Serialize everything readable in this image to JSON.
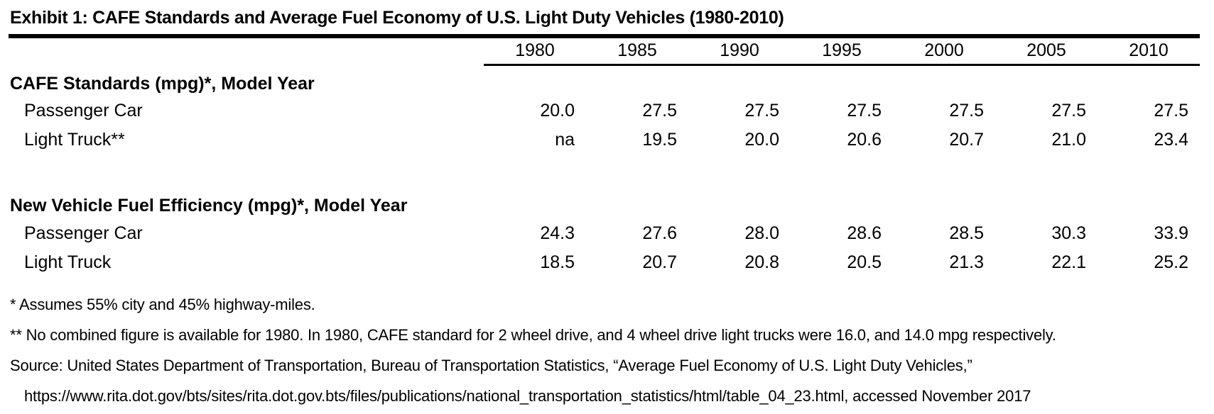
{
  "title": "Exhibit 1: CAFE Standards and Average Fuel Economy of U.S. Light Duty Vehicles (1980-2010)",
  "table": {
    "year_columns": [
      "1980",
      "1985",
      "1990",
      "1995",
      "2000",
      "2005",
      "2010"
    ],
    "sections": [
      {
        "header": "CAFE Standards (mpg)*, Model Year",
        "rows": [
          {
            "label": "Passenger Car",
            "values": [
              "20.0",
              "27.5",
              "27.5",
              "27.5",
              "27.5",
              "27.5",
              "27.5"
            ]
          },
          {
            "label": "Light Truck**",
            "values": [
              "na",
              "19.5",
              "20.0",
              "20.6",
              "20.7",
              "21.0",
              "23.4"
            ]
          }
        ]
      },
      {
        "header": "New Vehicle Fuel Efficiency (mpg)*, Model Year",
        "rows": [
          {
            "label": "Passenger Car",
            "values": [
              "24.3",
              "27.6",
              "28.0",
              "28.6",
              "28.5",
              "30.3",
              "33.9"
            ]
          },
          {
            "label": "Light Truck",
            "values": [
              "18.5",
              "20.7",
              "20.8",
              "20.5",
              "21.3",
              "22.1",
              "25.2"
            ]
          }
        ]
      }
    ]
  },
  "footnotes": [
    "* Assumes 55% city and 45% highway-miles.",
    "** No combined figure is available for 1980. In 1980, CAFE standard for 2 wheel drive, and 4 wheel drive light trucks were 16.0, and 14.0 mpg respectively.",
    "Source: United States Department of Transportation, Bureau of Transportation Statistics, “Average Fuel Economy of U.S. Light Duty Vehicles,”",
    "https://www.rita.dot.gov/bts/sites/rita.dot.gov.bts/files/publications/national_transportation_statistics/html/table_04_23.html, accessed November 2017"
  ],
  "colors": {
    "text": "#000000",
    "background": "#ffffff",
    "rule": "#000000"
  },
  "chart_data": {
    "type": "table",
    "title": "Exhibit 1: CAFE Standards and Average Fuel Economy of U.S. Light Duty Vehicles (1980-2010)",
    "x": [
      1980,
      1985,
      1990,
      1995,
      2000,
      2005,
      2010
    ],
    "series": [
      {
        "name": "CAFE Standards (mpg), Passenger Car",
        "values": [
          20.0,
          27.5,
          27.5,
          27.5,
          27.5,
          27.5,
          27.5
        ]
      },
      {
        "name": "CAFE Standards (mpg), Light Truck",
        "values": [
          null,
          19.5,
          20.0,
          20.6,
          20.7,
          21.0,
          23.4
        ]
      },
      {
        "name": "New Vehicle Fuel Efficiency (mpg), Passenger Car",
        "values": [
          24.3,
          27.6,
          28.0,
          28.6,
          28.5,
          30.3,
          33.9
        ]
      },
      {
        "name": "New Vehicle Fuel Efficiency (mpg), Light Truck",
        "values": [
          18.5,
          20.7,
          20.8,
          20.5,
          21.3,
          22.1,
          25.2
        ]
      }
    ]
  }
}
